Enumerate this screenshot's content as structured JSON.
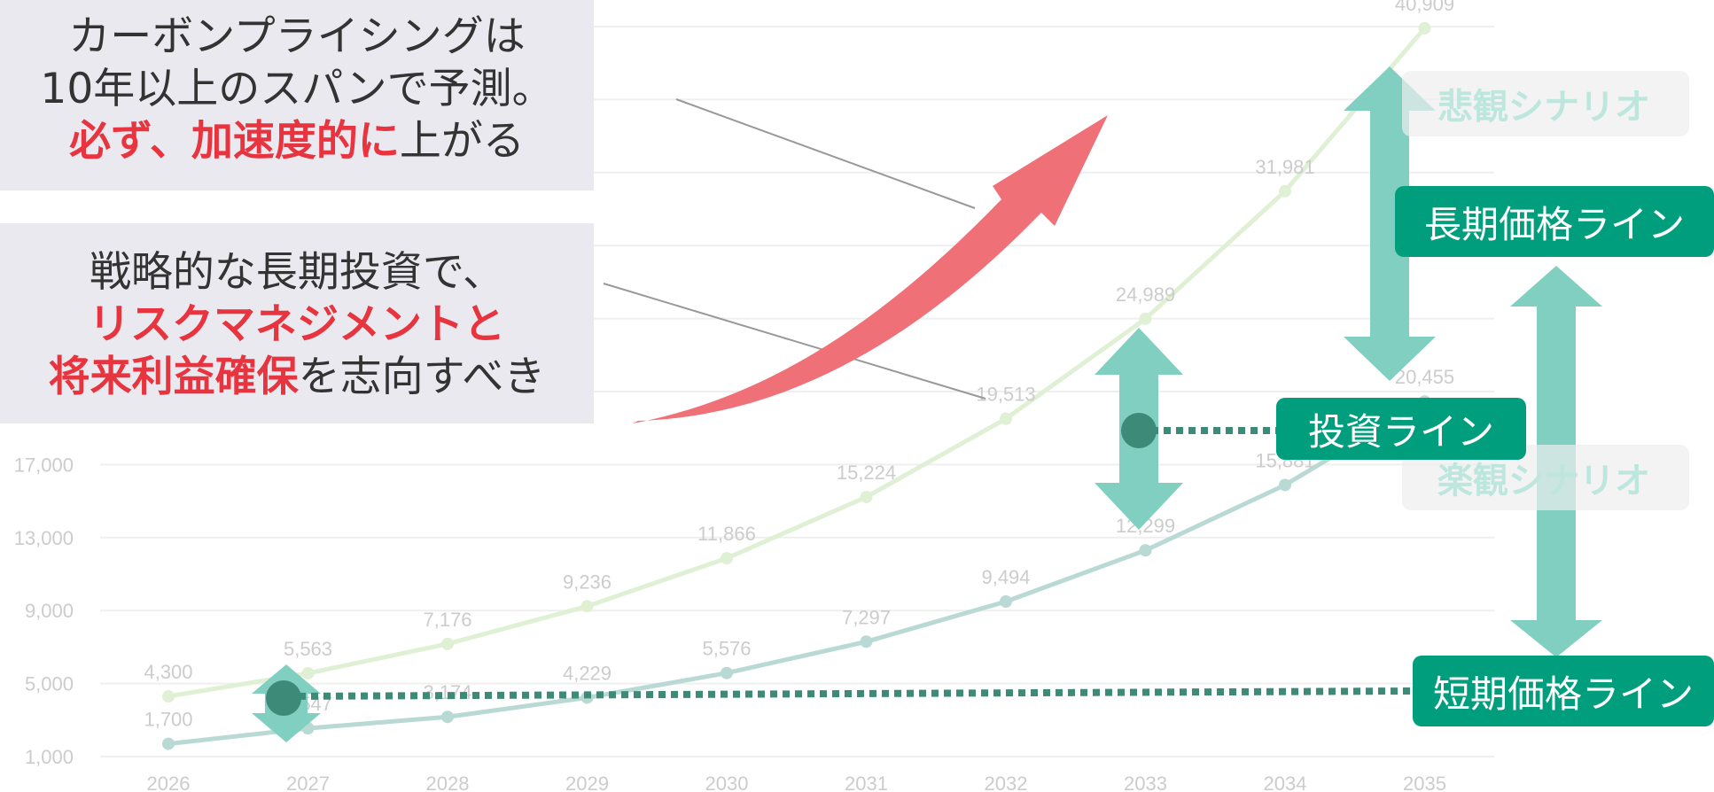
{
  "chart_data": {
    "type": "line",
    "x": [
      "2026",
      "2027",
      "2028",
      "2029",
      "2030",
      "2031",
      "2032",
      "2033",
      "2034",
      "2035"
    ],
    "series": [
      {
        "values": [
          4300,
          5563,
          7176,
          9236,
          11866,
          15224,
          19513,
          24989,
          31981,
          40909
        ],
        "labels": [
          "4,300",
          "5,563",
          "7,176",
          "9,236",
          "11,866",
          "15,224",
          "19,513",
          "24,989",
          "31,981",
          "40,909"
        ],
        "color": "#dff0d4"
      },
      {
        "values": [
          1700,
          2547,
          3174,
          4229,
          5576,
          7297,
          9494,
          12299,
          15881,
          20455
        ],
        "labels": [
          "1,700",
          "2,547",
          "3,174",
          "4,229",
          "5,576",
          "7,297",
          "9,494",
          "12,299",
          "15,881",
          "20,455"
        ],
        "color": "#b9d9d4"
      }
    ],
    "y_ticks": [
      "1,000",
      "5,000",
      "9,000",
      "13,000",
      "17,000"
    ],
    "ylim": [
      1000,
      41000
    ],
    "grid": true,
    "xlabel": "",
    "ylabel": ""
  },
  "callouts": {
    "top": {
      "line1": "カーボンプライシングは",
      "line2": "10年以上のスパンで予測。",
      "red": "必ず、加速度的に",
      "rest": "上がる"
    },
    "bottom": {
      "line1": "戦略的な長期投資で、",
      "red1": "リスクマネジメントと",
      "red2": "将来利益確保",
      "rest": "を志向すべき"
    }
  },
  "labels": {
    "long_term": "長期価格ライン",
    "investment": "投資ライン",
    "short_term": "短期価格ライン",
    "pessimistic": "悲観シナリオ",
    "optimistic": "楽観シナリオ"
  },
  "colors": {
    "accent": "#009e7c",
    "arrow_teal": "#80cfc0",
    "dot": "#3d8a78",
    "growth_arrow": "#f07078",
    "emphasis_red": "#e8343f"
  },
  "icons": {
    "growth": "upward-curved-arrow-icon",
    "range": "double-arrow-icon"
  }
}
